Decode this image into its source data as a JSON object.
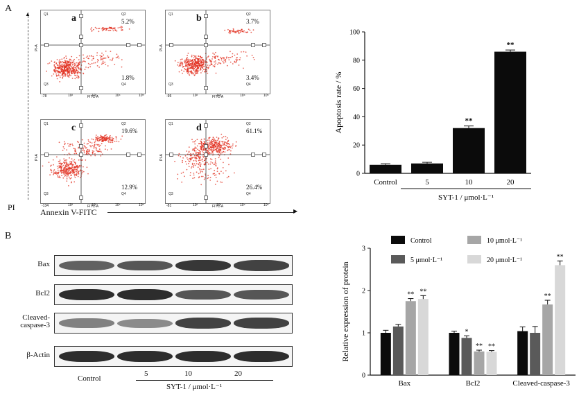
{
  "panel_a": {
    "letter": "A",
    "pi_axis_label": "PI",
    "annexin_axis_label": "Annexin V-FITC",
    "flow_panels": [
      {
        "sub": "a",
        "q1": "Q1",
        "q2": "Q2",
        "q3": "Q3",
        "q4": "Q4",
        "q2_pct": "5.2%",
        "q4_pct": "1.8%",
        "x_label": "FITC-A",
        "y_label": "PI-A",
        "x_min": "-78",
        "x_ticks": [
          "10²",
          "10³",
          "10⁴",
          "10⁵"
        ]
      },
      {
        "sub": "b",
        "q1": "Q1",
        "q2": "Q2",
        "q3": "Q3",
        "q4": "Q4",
        "q2_pct": "3.7%",
        "q4_pct": "3.4%",
        "x_label": "FITC-A",
        "y_label": "PI-A",
        "x_min": "-95",
        "x_ticks": [
          "10²",
          "10³",
          "10⁴",
          "10⁵"
        ]
      },
      {
        "sub": "c",
        "q1": "Q1",
        "q2": "Q2",
        "q3": "Q3",
        "q4": "Q4",
        "q2_pct": "19.6%",
        "q4_pct": "12.9%",
        "x_label": "FITC-A",
        "y_label": "PI-A",
        "x_min": "-134",
        "x_ticks": [
          "10²",
          "10³",
          "10⁴",
          "10⁵"
        ]
      },
      {
        "sub": "d",
        "q1": "Q1",
        "q2": "Q2",
        "q3": "Q3",
        "q4": "Q4",
        "q2_pct": "61.1%",
        "q4_pct": "26.4%",
        "x_label": "FITC-A",
        "y_label": "PI-A",
        "x_min": "-81",
        "x_ticks": [
          "10²",
          "10³",
          "10⁴",
          "10⁵"
        ]
      }
    ]
  },
  "panel_b": {
    "letter": "B",
    "blot_rows": [
      "Bax",
      "Bcl2",
      "Cleaved-caspase-3",
      "β-Actin"
    ],
    "blot_lane_labels": [
      "Control",
      "5",
      "10",
      "20"
    ],
    "blot_group_label": "SYT-1 / μmol·L⁻¹"
  },
  "chart_data": [
    {
      "type": "bar",
      "title": "",
      "ylabel": "Apoptosis rate / %",
      "xlabel": "SYT-1 / μmol·L⁻¹",
      "categories": [
        "Control",
        "5",
        "10",
        "20"
      ],
      "values": [
        6,
        7,
        32,
        86
      ],
      "errors": [
        0.8,
        0.8,
        1.5,
        1.2
      ],
      "significance": [
        "",
        "",
        "**",
        "**"
      ],
      "ylim": [
        0,
        100
      ],
      "yticks": [
        "0",
        "20",
        "40",
        "60",
        "80",
        "100"
      ],
      "bar_color": "#0b0b0b"
    },
    {
      "type": "bar",
      "title": "",
      "ylabel": "Relative expression of protein",
      "categories": [
        "Bax",
        "Bcl2",
        "Cleaved-caspase-3"
      ],
      "series": [
        {
          "name": "Control",
          "color": "#0b0b0b",
          "values": [
            1.0,
            1.0,
            1.04
          ],
          "errors": [
            0.06,
            0.04,
            0.1
          ],
          "significance": [
            "",
            "",
            ""
          ]
        },
        {
          "name": "5 μmol·L⁻¹",
          "color": "#5a5a5a",
          "values": [
            1.15,
            0.88,
            1.0
          ],
          "errors": [
            0.05,
            0.05,
            0.15
          ],
          "significance": [
            "",
            "*",
            ""
          ]
        },
        {
          "name": "10 μmol·L⁻¹",
          "color": "#a6a6a6",
          "values": [
            1.75,
            0.56,
            1.67
          ],
          "errors": [
            0.06,
            0.03,
            0.1
          ],
          "significance": [
            "**",
            "**",
            "**"
          ]
        },
        {
          "name": "20 μmol·L⁻¹",
          "color": "#d8d8d8",
          "values": [
            1.8,
            0.55,
            2.6
          ],
          "errors": [
            0.08,
            0.03,
            0.1
          ],
          "significance": [
            "**",
            "**",
            "**"
          ]
        }
      ],
      "ylim": [
        0,
        3
      ],
      "yticks": [
        "0",
        "1",
        "2",
        "3"
      ],
      "legend_position": "top"
    }
  ]
}
